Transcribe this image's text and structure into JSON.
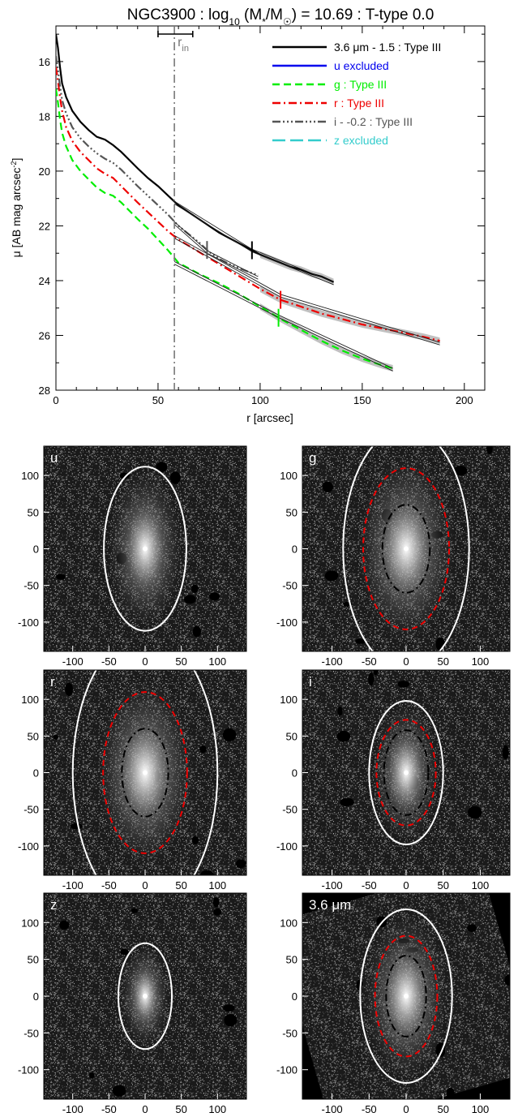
{
  "chart_data": [
    {
      "type": "line",
      "title_parts": {
        "a": "NGC3900 : log",
        "sub10": "10",
        "b": " (M",
        "sub_star": "*",
        "c": "/M",
        "sub_sun": "☉",
        "d": ") = 10.69 : T-type 0.0"
      },
      "xlabel": "r [arcsec]",
      "ylabel": {
        "main": "μ [AB mag arcsec",
        "sup": "-2",
        "close": "]"
      },
      "xlim": [
        0,
        210
      ],
      "ylim": [
        28,
        14.7
      ],
      "x_ticks": [
        "0",
        "50",
        "100",
        "150",
        "200"
      ],
      "x_tick_values": [
        0,
        50,
        100,
        150,
        200
      ],
      "y_ticks": [
        "16",
        "18",
        "20",
        "22",
        "24",
        "26",
        "28"
      ],
      "y_tick_values": [
        16,
        18,
        20,
        22,
        24,
        26,
        28
      ],
      "r_in": {
        "label": "r",
        "sub": "in",
        "value": 58,
        "err_low": 50,
        "err_high": 67
      },
      "series": [
        {
          "name": "3.6 μm - 1.5 : Type III",
          "color": "#000000",
          "dash": "solid",
          "points": [
            [
              0,
              15
            ],
            [
              1,
              15.5
            ],
            [
              2,
              16.2
            ],
            [
              3,
              16.8
            ],
            [
              5,
              17.3
            ],
            [
              8,
              17.8
            ],
            [
              12,
              18.2
            ],
            [
              16,
              18.5
            ],
            [
              20,
              18.75
            ],
            [
              24,
              18.85
            ],
            [
              28,
              19.05
            ],
            [
              32,
              19.3
            ],
            [
              36,
              19.6
            ],
            [
              40,
              19.9
            ],
            [
              45,
              20.25
            ],
            [
              50,
              20.55
            ],
            [
              55,
              20.9
            ],
            [
              60,
              21.25
            ],
            [
              65,
              21.5
            ],
            [
              70,
              21.75
            ],
            [
              75,
              22.0
            ],
            [
              80,
              22.25
            ],
            [
              85,
              22.45
            ],
            [
              90,
              22.65
            ],
            [
              95,
              22.85
            ],
            [
              100,
              23.05
            ],
            [
              105,
              23.2
            ],
            [
              110,
              23.35
            ],
            [
              115,
              23.5
            ],
            [
              120,
              23.6
            ],
            [
              125,
              23.75
            ],
            [
              130,
              23.85
            ],
            [
              136,
              24.05
            ]
          ],
          "break": 96,
          "fit_segments": [
            [
              [
                58,
                21.15
              ],
              [
                96,
                22.9
              ]
            ],
            [
              [
                96,
                22.9
              ],
              [
                136,
                24.1
              ]
            ]
          ]
        },
        {
          "name": "u excluded",
          "color": "#0000ee",
          "dash": "solid",
          "points": []
        },
        {
          "name": "g : Type III",
          "color": "#00ee00",
          "dash": "dash",
          "points": [
            [
              0,
              17
            ],
            [
              1,
              17.5
            ],
            [
              2,
              18.1
            ],
            [
              3,
              18.6
            ],
            [
              5,
              19.1
            ],
            [
              8,
              19.6
            ],
            [
              12,
              20.0
            ],
            [
              16,
              20.3
            ],
            [
              20,
              20.6
            ],
            [
              24,
              20.8
            ],
            [
              28,
              20.9
            ],
            [
              32,
              21.15
            ],
            [
              36,
              21.45
            ],
            [
              40,
              21.75
            ],
            [
              45,
              22.1
            ],
            [
              50,
              22.5
            ],
            [
              55,
              22.9
            ],
            [
              60,
              23.35
            ],
            [
              70,
              23.75
            ],
            [
              80,
              24.1
            ],
            [
              90,
              24.5
            ],
            [
              100,
              24.95
            ],
            [
              110,
              25.4
            ],
            [
              120,
              25.8
            ],
            [
              130,
              26.2
            ],
            [
              140,
              26.55
            ],
            [
              150,
              26.85
            ],
            [
              160,
              27.1
            ],
            [
              165,
              27.2
            ]
          ],
          "break": 109,
          "fit_segments": [
            [
              [
                58,
                23.35
              ],
              [
                109,
                25.3
              ]
            ],
            [
              [
                109,
                25.3
              ],
              [
                165,
                27.25
              ]
            ]
          ]
        },
        {
          "name": "r : Type III",
          "color": "#ee0000",
          "dash": "dashdot",
          "points": [
            [
              0,
              16.2
            ],
            [
              1,
              16.7
            ],
            [
              2,
              17.3
            ],
            [
              3,
              17.8
            ],
            [
              5,
              18.4
            ],
            [
              8,
              18.9
            ],
            [
              12,
              19.3
            ],
            [
              16,
              19.6
            ],
            [
              20,
              19.9
            ],
            [
              24,
              20.1
            ],
            [
              28,
              20.25
            ],
            [
              32,
              20.55
            ],
            [
              36,
              20.85
            ],
            [
              40,
              21.15
            ],
            [
              45,
              21.5
            ],
            [
              50,
              21.85
            ],
            [
              55,
              22.2
            ],
            [
              60,
              22.5
            ],
            [
              70,
              22.95
            ],
            [
              80,
              23.4
            ],
            [
              90,
              23.85
            ],
            [
              100,
              24.3
            ],
            [
              110,
              24.7
            ],
            [
              120,
              24.95
            ],
            [
              130,
              25.2
            ],
            [
              140,
              25.4
            ],
            [
              150,
              25.6
            ],
            [
              160,
              25.75
            ],
            [
              170,
              25.9
            ],
            [
              180,
              26.05
            ],
            [
              188,
              26.2
            ]
          ],
          "break": 110,
          "fit_segments": [
            [
              [
                58,
                22.4
              ],
              [
                110,
                24.55
              ]
            ],
            [
              [
                110,
                24.55
              ],
              [
                188,
                26.3
              ]
            ]
          ]
        },
        {
          "name": "i - -0.2 : Type III",
          "color": "#555555",
          "dash": "dashdotdotdot",
          "points": [
            [
              0,
              15.8
            ],
            [
              1,
              16.3
            ],
            [
              2,
              16.9
            ],
            [
              3,
              17.4
            ],
            [
              5,
              17.9
            ],
            [
              8,
              18.4
            ],
            [
              12,
              18.8
            ],
            [
              16,
              19.1
            ],
            [
              20,
              19.35
            ],
            [
              24,
              19.55
            ],
            [
              28,
              19.7
            ],
            [
              32,
              19.95
            ],
            [
              36,
              20.25
            ],
            [
              40,
              20.55
            ],
            [
              45,
              20.9
            ],
            [
              50,
              21.25
            ],
            [
              55,
              21.6
            ],
            [
              60,
              22.0
            ],
            [
              65,
              22.3
            ],
            [
              70,
              22.6
            ],
            [
              75,
              22.95
            ],
            [
              80,
              23.2
            ],
            [
              85,
              23.4
            ],
            [
              90,
              23.55
            ],
            [
              95,
              23.7
            ],
            [
              99,
              23.8
            ]
          ],
          "break": 74,
          "fit_segments": [
            [
              [
                58,
                21.9
              ],
              [
                74,
                22.95
              ]
            ],
            [
              [
                74,
                22.95
              ],
              [
                99,
                23.9
              ]
            ]
          ]
        },
        {
          "name": "z excluded",
          "color": "#33cccc",
          "dash": "longdash",
          "points": []
        }
      ]
    },
    {
      "type": "heatmap",
      "panels": [
        {
          "label": "u",
          "y_ticks": [
            "100",
            "50",
            "0",
            "-50",
            "-100"
          ],
          "x_ticks": [
            "-100",
            "-50",
            "0",
            "50",
            "100"
          ],
          "outer_ellipse": {
            "a": 57,
            "b": 112,
            "color": "#ffffff",
            "style": "solid"
          },
          "break_ellipse": null,
          "inner_ellipse": null
        },
        {
          "label": "g",
          "y_ticks": [
            "100",
            "50",
            "0",
            "-50",
            "-100"
          ],
          "x_ticks": [
            "-100",
            "-50",
            "0",
            "50",
            "100"
          ],
          "outer_ellipse": {
            "a": 85,
            "b": 165,
            "color": "#ffffff",
            "style": "solid"
          },
          "break_ellipse": {
            "a": 58,
            "b": 110,
            "color": "#ee0000",
            "style": "dash"
          },
          "inner_ellipse": {
            "a": 32,
            "b": 60,
            "color": "#000000",
            "style": "dashdot"
          }
        },
        {
          "label": "r",
          "y_ticks": [
            "100",
            "50",
            "0",
            "-50",
            "-100"
          ],
          "x_ticks": [
            "-100",
            "-50",
            "0",
            "50",
            "100"
          ],
          "outer_ellipse": {
            "a": 100,
            "b": 190,
            "color": "#ffffff",
            "style": "solid"
          },
          "break_ellipse": {
            "a": 58,
            "b": 110,
            "color": "#ee0000",
            "style": "dash"
          },
          "inner_ellipse": {
            "a": 32,
            "b": 60,
            "color": "#000000",
            "style": "dashdot"
          }
        },
        {
          "label": "i",
          "y_ticks": [
            "100",
            "50",
            "0",
            "-50",
            "-100"
          ],
          "x_ticks": [
            "-100",
            "-50",
            "0",
            "50",
            "100"
          ],
          "outer_ellipse": {
            "a": 50,
            "b": 98,
            "color": "#ffffff",
            "style": "solid"
          },
          "break_ellipse": {
            "a": 40,
            "b": 72,
            "color": "#ee0000",
            "style": "dash"
          },
          "inner_ellipse": {
            "a": 30,
            "b": 58,
            "color": "#000000",
            "style": "dashdot"
          }
        },
        {
          "label": "z",
          "y_ticks": [
            "100",
            "50",
            "0",
            "-50",
            "-100"
          ],
          "x_ticks": [
            "-100",
            "-50",
            "0",
            "50",
            "100"
          ],
          "outer_ellipse": {
            "a": 37,
            "b": 72,
            "color": "#ffffff",
            "style": "solid"
          },
          "break_ellipse": null,
          "inner_ellipse": null
        },
        {
          "label": "3.6 μm",
          "y_ticks": [
            "100",
            "50",
            "0",
            "-50",
            "-100"
          ],
          "x_ticks": [
            "-100",
            "-50",
            "0",
            "50",
            "100"
          ],
          "outer_ellipse": {
            "a": 62,
            "b": 118,
            "color": "#ffffff",
            "style": "solid"
          },
          "break_ellipse": {
            "a": 42,
            "b": 82,
            "color": "#ee0000",
            "style": "dash"
          },
          "inner_ellipse": {
            "a": 27,
            "b": 55,
            "color": "#000000",
            "style": "dashdot"
          }
        }
      ]
    }
  ]
}
